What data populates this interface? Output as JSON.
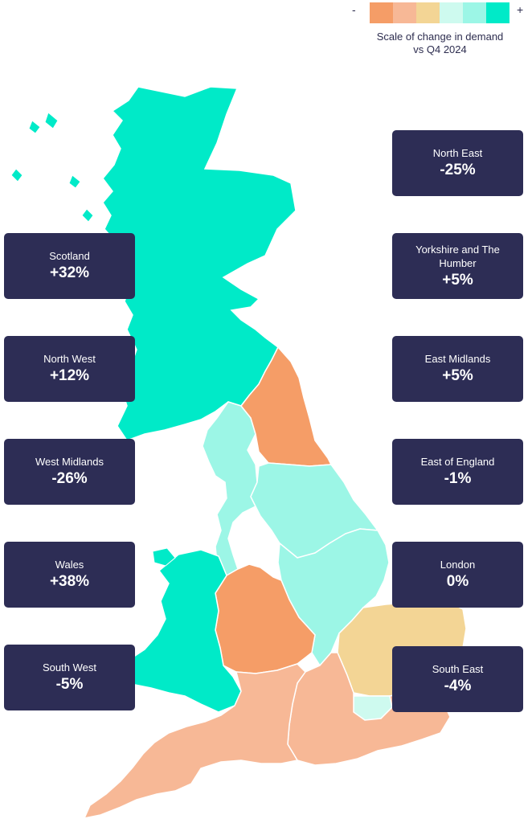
{
  "legend": {
    "minus": "-",
    "plus": "+",
    "swatches": [
      "#f59d67",
      "#f7b896",
      "#f3d595",
      "#cefaef",
      "#9cf6e6",
      "#00eac8"
    ],
    "caption": "Scale of change in demand vs Q4 2024"
  },
  "colors": {
    "card_bg": "#2d2d55",
    "scotland": "#00eac8",
    "wales": "#00eac8",
    "north_east": "#f59d67",
    "west_midlands": "#f59d67",
    "south_west": "#f7b896",
    "south_east": "#f7b896",
    "east_of_england": "#f3d595",
    "london": "#cefaef",
    "north_west": "#9cf6e6",
    "yorkshire": "#9cf6e6",
    "east_midlands": "#9cf6e6"
  },
  "regions": [
    {
      "name": "Scotland",
      "value": "+32%"
    },
    {
      "name": "North West",
      "value": "+12%"
    },
    {
      "name": "West Midlands",
      "value": "-26%"
    },
    {
      "name": "Wales",
      "value": "+38%"
    },
    {
      "name": "South West",
      "value": "-5%"
    },
    {
      "name": "North East",
      "value": "-25%"
    },
    {
      "name": "Yorkshire and The Humber",
      "value": "+5%"
    },
    {
      "name": "East Midlands",
      "value": "+5%"
    },
    {
      "name": "East of England",
      "value": "-1%"
    },
    {
      "name": "London",
      "value": "0%"
    },
    {
      "name": "South East",
      "value": "-4%"
    }
  ]
}
